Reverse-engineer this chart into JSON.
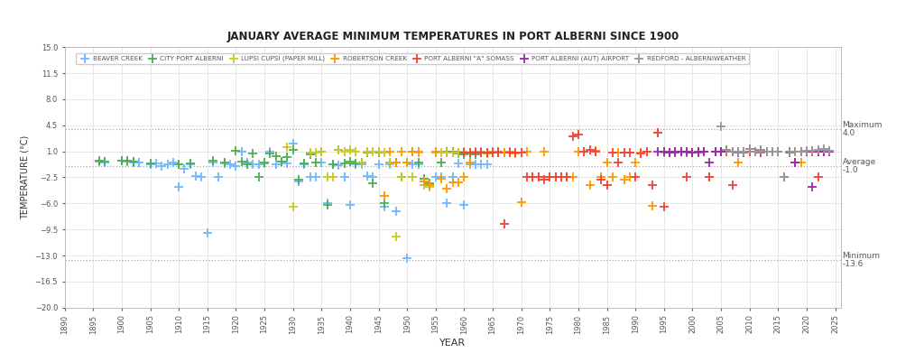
{
  "title": "JANUARY AVERAGE MINIMUM TEMPERATURES IN PORT ALBERNI SINCE 1900",
  "xlabel": "YEAR",
  "ylabel": "TEMPERATURE (°C)",
  "ylim": [
    -20.0,
    15.0
  ],
  "xlim": [
    1890,
    2026
  ],
  "yticks": [
    -20.0,
    -16.5,
    -13.0,
    -9.5,
    -6.0,
    -2.5,
    1.0,
    4.5,
    8.0,
    11.5,
    15.0
  ],
  "xticks": [
    1890,
    1895,
    1900,
    1905,
    1910,
    1915,
    1920,
    1925,
    1930,
    1935,
    1940,
    1945,
    1950,
    1955,
    1960,
    1965,
    1970,
    1975,
    1980,
    1985,
    1990,
    1995,
    2000,
    2005,
    2010,
    2015,
    2020,
    2025
  ],
  "average_line": -1.0,
  "maximum_line": 4.0,
  "minimum_line": -13.6,
  "background_color": "#ffffff",
  "plot_bg_color": "#ffffff",
  "grid_color": "#dddddd",
  "annotation_color": "#555555",
  "series": [
    {
      "name": "BEAVER CREEK",
      "color": "#70b8ff",
      "marker": "P",
      "data": [
        [
          1896,
          -0.4
        ],
        [
          1897,
          -0.5
        ],
        [
          1900,
          -0.3
        ],
        [
          1901,
          -0.4
        ],
        [
          1902,
          -0.5
        ],
        [
          1903,
          -0.5
        ],
        [
          1905,
          -0.7
        ],
        [
          1906,
          -0.6
        ],
        [
          1907,
          -1.0
        ],
        [
          1908,
          -0.8
        ],
        [
          1909,
          -0.5
        ],
        [
          1910,
          -3.8
        ],
        [
          1911,
          -1.3
        ],
        [
          1912,
          -0.7
        ],
        [
          1913,
          -2.3
        ],
        [
          1914,
          -2.4
        ],
        [
          1915,
          -10.0
        ],
        [
          1916,
          -0.5
        ],
        [
          1917,
          -2.5
        ],
        [
          1918,
          -0.6
        ],
        [
          1919,
          -0.8
        ],
        [
          1920,
          -1.0
        ],
        [
          1921,
          1.0
        ],
        [
          1922,
          -0.5
        ],
        [
          1923,
          -0.8
        ],
        [
          1924,
          -0.7
        ],
        [
          1925,
          -0.6
        ],
        [
          1926,
          1.0
        ],
        [
          1927,
          -0.7
        ],
        [
          1928,
          -0.4
        ],
        [
          1929,
          -0.6
        ],
        [
          1930,
          2.0
        ],
        [
          1931,
          -3.0
        ],
        [
          1932,
          -0.7
        ],
        [
          1933,
          -2.5
        ],
        [
          1934,
          -2.5
        ],
        [
          1935,
          -0.5
        ],
        [
          1936,
          -6.0
        ],
        [
          1937,
          -0.8
        ],
        [
          1938,
          -0.9
        ],
        [
          1939,
          -2.5
        ],
        [
          1940,
          -6.2
        ],
        [
          1941,
          -0.7
        ],
        [
          1942,
          -0.7
        ],
        [
          1943,
          -2.3
        ],
        [
          1944,
          -2.5
        ],
        [
          1945,
          -0.7
        ],
        [
          1946,
          -6.5
        ],
        [
          1947,
          -0.8
        ],
        [
          1948,
          -7.0
        ],
        [
          1949,
          -2.5
        ],
        [
          1950,
          -13.3
        ],
        [
          1951,
          -0.7
        ],
        [
          1952,
          -0.8
        ],
        [
          1953,
          -3.0
        ],
        [
          1954,
          -3.5
        ],
        [
          1955,
          -2.5
        ],
        [
          1956,
          -2.5
        ],
        [
          1957,
          -6.0
        ],
        [
          1958,
          -2.5
        ],
        [
          1959,
          -0.6
        ],
        [
          1960,
          -6.2
        ],
        [
          1961,
          -0.7
        ],
        [
          1962,
          -0.7
        ],
        [
          1963,
          -0.7
        ],
        [
          1964,
          -0.7
        ]
      ]
    },
    {
      "name": "CITY PORT ALBERNI",
      "color": "#4daf4d",
      "marker": "P",
      "data": [
        [
          1896,
          -0.3
        ],
        [
          1897,
          -0.4
        ],
        [
          1900,
          -0.2
        ],
        [
          1901,
          -0.3
        ],
        [
          1902,
          -0.4
        ],
        [
          1905,
          -0.6
        ],
        [
          1910,
          -0.7
        ],
        [
          1912,
          -0.6
        ],
        [
          1916,
          -0.3
        ],
        [
          1918,
          -0.5
        ],
        [
          1920,
          1.1
        ],
        [
          1921,
          -0.4
        ],
        [
          1922,
          -0.7
        ],
        [
          1923,
          0.7
        ],
        [
          1924,
          -2.5
        ],
        [
          1925,
          -0.5
        ],
        [
          1926,
          0.7
        ],
        [
          1927,
          0.3
        ],
        [
          1928,
          -0.4
        ],
        [
          1929,
          0.2
        ],
        [
          1930,
          1.2
        ],
        [
          1931,
          -2.8
        ],
        [
          1932,
          -0.6
        ],
        [
          1933,
          0.6
        ],
        [
          1934,
          -0.5
        ],
        [
          1935,
          0.9
        ],
        [
          1936,
          -6.2
        ],
        [
          1937,
          -0.7
        ],
        [
          1938,
          1.2
        ],
        [
          1939,
          -0.6
        ],
        [
          1940,
          -0.4
        ],
        [
          1941,
          -0.6
        ],
        [
          1942,
          -0.5
        ],
        [
          1943,
          0.8
        ],
        [
          1944,
          -3.3
        ],
        [
          1945,
          0.8
        ],
        [
          1946,
          -6.0
        ],
        [
          1947,
          -0.5
        ],
        [
          1948,
          -0.5
        ],
        [
          1949,
          -2.5
        ],
        [
          1950,
          -0.5
        ],
        [
          1951,
          1.0
        ],
        [
          1952,
          -0.5
        ],
        [
          1953,
          -2.7
        ],
        [
          1954,
          -3.3
        ],
        [
          1955,
          0.8
        ],
        [
          1956,
          -0.5
        ],
        [
          1957,
          0.9
        ],
        [
          1958,
          1.0
        ],
        [
          1959,
          0.7
        ],
        [
          1960,
          0.6
        ],
        [
          1961,
          0.7
        ],
        [
          1962,
          0.6
        ],
        [
          1963,
          0.8
        ],
        [
          1964,
          0.7
        ],
        [
          1965,
          0.8
        ],
        [
          1966,
          0.9
        ]
      ]
    },
    {
      "name": "LUPSI CUPSI (PAPER MILL)",
      "color": "#c8c820",
      "marker": "P",
      "data": [
        [
          1929,
          1.5
        ],
        [
          1930,
          -6.5
        ],
        [
          1933,
          0.8
        ],
        [
          1934,
          0.8
        ],
        [
          1935,
          0.9
        ],
        [
          1936,
          -2.5
        ],
        [
          1937,
          -2.5
        ],
        [
          1938,
          1.2
        ],
        [
          1939,
          0.9
        ],
        [
          1940,
          1.2
        ],
        [
          1941,
          0.9
        ],
        [
          1942,
          -0.5
        ],
        [
          1943,
          0.9
        ],
        [
          1944,
          0.9
        ],
        [
          1945,
          1.0
        ],
        [
          1946,
          0.8
        ],
        [
          1947,
          -0.5
        ],
        [
          1948,
          -10.5
        ],
        [
          1949,
          -2.5
        ],
        [
          1950,
          -0.5
        ],
        [
          1951,
          -2.5
        ],
        [
          1952,
          0.8
        ],
        [
          1953,
          -3.5
        ],
        [
          1954,
          -3.8
        ],
        [
          1955,
          0.8
        ],
        [
          1956,
          0.8
        ],
        [
          1957,
          0.8
        ],
        [
          1958,
          0.8
        ],
        [
          1959,
          0.8
        ],
        [
          1960,
          0.9
        ],
        [
          1961,
          0.8
        ],
        [
          1962,
          0.8
        ],
        [
          1963,
          0.9
        ],
        [
          1964,
          0.8
        ],
        [
          1965,
          0.9
        ],
        [
          1966,
          0.8
        ],
        [
          1967,
          0.8
        ]
      ]
    },
    {
      "name": "ROBERTSON CREEK",
      "color": "#ff9800",
      "marker": "P",
      "data": [
        [
          1946,
          -5.0
        ],
        [
          1947,
          1.0
        ],
        [
          1948,
          -0.5
        ],
        [
          1949,
          0.9
        ],
        [
          1950,
          -0.5
        ],
        [
          1951,
          0.9
        ],
        [
          1952,
          0.9
        ],
        [
          1953,
          -3.0
        ],
        [
          1954,
          -3.5
        ],
        [
          1955,
          1.0
        ],
        [
          1956,
          -2.7
        ],
        [
          1957,
          -4.0
        ],
        [
          1958,
          -3.2
        ],
        [
          1959,
          -3.2
        ],
        [
          1960,
          -2.5
        ],
        [
          1961,
          -0.5
        ],
        [
          1962,
          0.9
        ],
        [
          1963,
          0.9
        ],
        [
          1964,
          0.7
        ],
        [
          1965,
          0.9
        ],
        [
          1966,
          0.8
        ],
        [
          1967,
          0.8
        ],
        [
          1968,
          1.0
        ],
        [
          1969,
          0.7
        ],
        [
          1970,
          -5.8
        ],
        [
          1971,
          0.9
        ],
        [
          1972,
          -2.5
        ],
        [
          1973,
          -2.5
        ],
        [
          1974,
          0.9
        ],
        [
          1975,
          -2.5
        ],
        [
          1976,
          -2.5
        ],
        [
          1977,
          -2.5
        ],
        [
          1978,
          -2.5
        ],
        [
          1979,
          -2.5
        ],
        [
          1980,
          1.0
        ],
        [
          1981,
          0.9
        ],
        [
          1982,
          -3.5
        ],
        [
          1983,
          1.1
        ],
        [
          1984,
          -2.5
        ],
        [
          1985,
          -0.5
        ],
        [
          1986,
          -2.5
        ],
        [
          1987,
          0.8
        ],
        [
          1988,
          -2.8
        ],
        [
          1989,
          -2.5
        ],
        [
          1990,
          -0.5
        ],
        [
          1991,
          0.8
        ],
        [
          1992,
          0.9
        ],
        [
          1993,
          -6.3
        ],
        [
          1994,
          3.5
        ],
        [
          1995,
          0.8
        ],
        [
          1996,
          0.8
        ],
        [
          1997,
          0.8
        ],
        [
          1998,
          0.9
        ],
        [
          1999,
          0.8
        ],
        [
          2000,
          0.8
        ],
        [
          2001,
          0.8
        ],
        [
          2002,
          0.9
        ],
        [
          2003,
          -2.5
        ],
        [
          2004,
          0.9
        ],
        [
          2005,
          0.9
        ],
        [
          2006,
          1.2
        ],
        [
          2007,
          0.9
        ],
        [
          2008,
          -0.5
        ],
        [
          2009,
          0.8
        ],
        [
          2010,
          0.9
        ],
        [
          2011,
          1.0
        ],
        [
          2012,
          1.0
        ],
        [
          2013,
          0.9
        ],
        [
          2014,
          1.0
        ],
        [
          2015,
          1.0
        ],
        [
          2016,
          -2.5
        ],
        [
          2017,
          1.0
        ],
        [
          2018,
          1.0
        ],
        [
          2019,
          -0.5
        ],
        [
          2020,
          1.0
        ],
        [
          2021,
          1.1
        ],
        [
          2022,
          1.0
        ],
        [
          2023,
          1.0
        ],
        [
          2024,
          1.0
        ]
      ]
    },
    {
      "name": "PORT ALBERNI \"A\" SOMASS",
      "color": "#f44336",
      "marker": "P",
      "data": [
        [
          1960,
          0.8
        ],
        [
          1961,
          0.8
        ],
        [
          1962,
          0.8
        ],
        [
          1963,
          0.8
        ],
        [
          1964,
          0.8
        ],
        [
          1965,
          0.8
        ],
        [
          1966,
          0.8
        ],
        [
          1967,
          -8.8
        ],
        [
          1968,
          0.8
        ],
        [
          1969,
          0.8
        ],
        [
          1970,
          0.8
        ],
        [
          1971,
          -2.5
        ],
        [
          1972,
          -2.5
        ],
        [
          1973,
          -2.5
        ],
        [
          1974,
          -2.8
        ],
        [
          1975,
          -2.5
        ],
        [
          1976,
          -2.5
        ],
        [
          1977,
          -2.5
        ],
        [
          1978,
          -2.5
        ],
        [
          1979,
          3.0
        ],
        [
          1980,
          3.2
        ],
        [
          1981,
          1.0
        ],
        [
          1982,
          1.2
        ],
        [
          1983,
          0.9
        ],
        [
          1984,
          -2.8
        ],
        [
          1985,
          -3.5
        ],
        [
          1986,
          0.8
        ],
        [
          1987,
          -0.5
        ],
        [
          1988,
          0.8
        ],
        [
          1989,
          0.8
        ],
        [
          1990,
          -2.5
        ],
        [
          1991,
          0.7
        ],
        [
          1992,
          0.9
        ],
        [
          1993,
          -3.5
        ],
        [
          1994,
          3.5
        ],
        [
          1995,
          -6.5
        ],
        [
          1996,
          0.8
        ],
        [
          1997,
          0.8
        ],
        [
          1998,
          0.9
        ],
        [
          1999,
          -2.5
        ],
        [
          2000,
          0.8
        ],
        [
          2001,
          0.8
        ],
        [
          2002,
          0.9
        ],
        [
          2003,
          -2.5
        ],
        [
          2004,
          0.9
        ],
        [
          2005,
          0.9
        ],
        [
          2006,
          1.0
        ],
        [
          2007,
          -3.5
        ],
        [
          2008,
          0.8
        ],
        [
          2009,
          0.8
        ],
        [
          2010,
          0.9
        ],
        [
          2011,
          1.0
        ],
        [
          2012,
          0.8
        ],
        [
          2013,
          1.0
        ],
        [
          2014,
          0.9
        ],
        [
          2015,
          0.9
        ],
        [
          2016,
          -2.5
        ],
        [
          2017,
          0.8
        ],
        [
          2018,
          -0.5
        ],
        [
          2019,
          0.9
        ],
        [
          2020,
          1.0
        ],
        [
          2021,
          1.0
        ],
        [
          2022,
          -2.5
        ],
        [
          2023,
          1.1
        ],
        [
          2024,
          1.0
        ]
      ]
    },
    {
      "name": "PORT ALBERNI (AUT) AIRPORT",
      "color": "#9c27b0",
      "marker": "P",
      "data": [
        [
          1994,
          0.9
        ],
        [
          1995,
          0.9
        ],
        [
          1996,
          0.8
        ],
        [
          1997,
          0.9
        ],
        [
          1998,
          0.9
        ],
        [
          1999,
          0.9
        ],
        [
          2000,
          0.8
        ],
        [
          2001,
          0.9
        ],
        [
          2002,
          0.9
        ],
        [
          2003,
          -0.5
        ],
        [
          2004,
          0.9
        ],
        [
          2005,
          1.0
        ],
        [
          2006,
          1.2
        ],
        [
          2007,
          0.9
        ],
        [
          2008,
          0.9
        ],
        [
          2009,
          0.9
        ],
        [
          2010,
          1.3
        ],
        [
          2011,
          1.0
        ],
        [
          2012,
          1.2
        ],
        [
          2013,
          0.9
        ],
        [
          2014,
          0.9
        ],
        [
          2015,
          1.0
        ],
        [
          2016,
          -2.5
        ],
        [
          2017,
          0.9
        ],
        [
          2018,
          -0.5
        ],
        [
          2019,
          0.9
        ],
        [
          2020,
          0.9
        ],
        [
          2021,
          -3.8
        ],
        [
          2022,
          0.9
        ],
        [
          2023,
          0.9
        ],
        [
          2024,
          0.9
        ]
      ]
    },
    {
      "name": "REDFORD - ALBERNIWEATHER",
      "color": "#999999",
      "marker": "P",
      "data": [
        [
          2005,
          4.3
        ],
        [
          2006,
          1.2
        ],
        [
          2007,
          0.9
        ],
        [
          2008,
          0.9
        ],
        [
          2009,
          0.9
        ],
        [
          2010,
          1.3
        ],
        [
          2011,
          1.0
        ],
        [
          2012,
          1.2
        ],
        [
          2013,
          1.0
        ],
        [
          2014,
          1.0
        ],
        [
          2015,
          1.0
        ],
        [
          2016,
          -2.5
        ],
        [
          2017,
          1.0
        ],
        [
          2018,
          0.9
        ],
        [
          2019,
          1.0
        ],
        [
          2020,
          1.1
        ],
        [
          2021,
          1.1
        ],
        [
          2022,
          1.2
        ],
        [
          2023,
          1.3
        ],
        [
          2024,
          1.1
        ]
      ]
    }
  ]
}
